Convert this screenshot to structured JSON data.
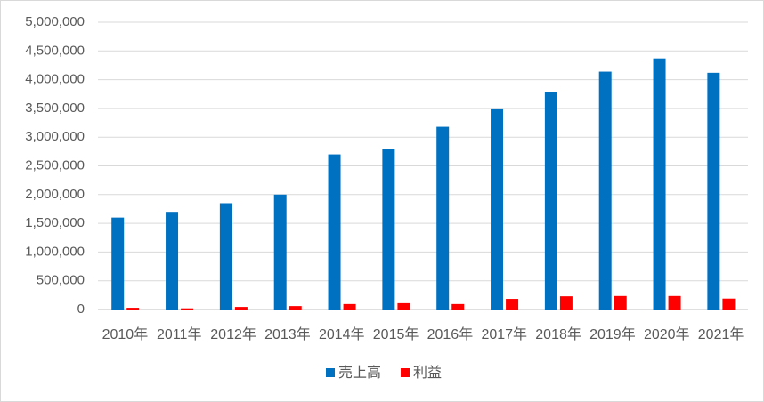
{
  "chart_data": {
    "type": "bar",
    "categories": [
      "2010年",
      "2011年",
      "2012年",
      "2013年",
      "2014年",
      "2015年",
      "2016年",
      "2017年",
      "2018年",
      "2019年",
      "2020年",
      "2021年"
    ],
    "series": [
      {
        "name": "売上高",
        "color": "#0070c0",
        "values": [
          1600000,
          1700000,
          1850000,
          2000000,
          2700000,
          2800000,
          3180000,
          3500000,
          3780000,
          4140000,
          4370000,
          4120000
        ]
      },
      {
        "name": "利益",
        "color": "#ff0000",
        "values": [
          30000,
          20000,
          45000,
          60000,
          95000,
          110000,
          95000,
          185000,
          230000,
          235000,
          235000,
          190000
        ]
      }
    ],
    "ylim": [
      0,
      5000000
    ],
    "yticks": [
      0,
      {
        "value": 500000,
        "label": "500,000"
      },
      {
        "value": 1000000,
        "label": "1,000,000"
      },
      {
        "value": 1500000,
        "label": "1,500,000"
      },
      {
        "value": 2000000,
        "label": "2,000,000"
      },
      {
        "value": 2500000,
        "label": "2,500,000"
      },
      {
        "value": 3000000,
        "label": "3,000,000"
      },
      {
        "value": 3500000,
        "label": "3,500,000"
      },
      {
        "value": 4000000,
        "label": "4,000,000"
      },
      {
        "value": 4500000,
        "label": "4,500,000"
      },
      {
        "value": 5000000,
        "label": "5,000,000"
      }
    ],
    "grid": true,
    "legend": "bottom"
  }
}
